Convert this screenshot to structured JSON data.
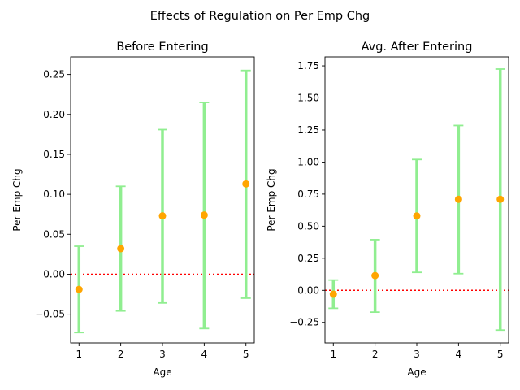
{
  "figure": {
    "suptitle": "Effects of Regulation on Per Emp Chg"
  },
  "colors": {
    "errorbar": "#90ee90",
    "point": "#ffa500",
    "zero_line": "#ff0000"
  },
  "chart_data": [
    {
      "type": "scatter",
      "title": "Before Entering",
      "xlabel": "Age",
      "ylabel": "Per Emp Chg",
      "x": [
        1,
        2,
        3,
        4,
        5
      ],
      "y": [
        -0.019,
        0.032,
        0.073,
        0.074,
        0.113
      ],
      "err_low": [
        -0.073,
        -0.046,
        -0.036,
        -0.068,
        -0.03
      ],
      "err_high": [
        0.035,
        0.11,
        0.181,
        0.215,
        0.255
      ],
      "xlim": [
        0.8,
        5.2
      ],
      "ylim": [
        -0.086,
        0.272
      ],
      "xticks": [
        "1",
        "2",
        "3",
        "4",
        "5"
      ],
      "yticks": [
        "−0.05",
        "0.00",
        "0.05",
        "0.10",
        "0.15",
        "0.20",
        "0.25"
      ],
      "ytick_values": [
        -0.05,
        0,
        0.05,
        0.1,
        0.15,
        0.2,
        0.25
      ],
      "reference_line": {
        "y": 0,
        "style": "dotted"
      },
      "grid": false
    },
    {
      "type": "scatter",
      "title": "Avg. After Entering",
      "xlabel": "Age",
      "ylabel": "Per Emp Chg",
      "x": [
        1,
        2,
        3,
        4,
        5
      ],
      "y": [
        -0.03,
        0.115,
        0.58,
        0.71,
        0.71
      ],
      "err_low": [
        -0.14,
        -0.17,
        0.14,
        0.13,
        -0.31
      ],
      "err_high": [
        0.08,
        0.395,
        1.02,
        1.285,
        1.725
      ],
      "xlim": [
        0.8,
        5.2
      ],
      "ylim": [
        -0.41,
        1.82
      ],
      "xticks": [
        "1",
        "2",
        "3",
        "4",
        "5"
      ],
      "yticks": [
        "−0.25",
        "0.00",
        "0.25",
        "0.50",
        "0.75",
        "1.00",
        "1.25",
        "1.50",
        "1.75"
      ],
      "ytick_values": [
        -0.25,
        0,
        0.25,
        0.5,
        0.75,
        1.0,
        1.25,
        1.5,
        1.75
      ],
      "reference_line": {
        "y": 0,
        "style": "dotted"
      },
      "grid": false
    }
  ]
}
